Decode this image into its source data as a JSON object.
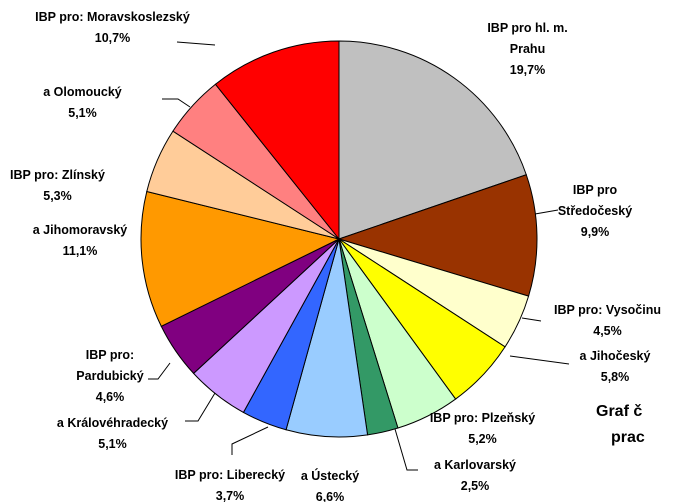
{
  "chart_data": {
    "type": "pie",
    "categories": [
      "IBP pro hl. m. Prahu",
      "IBP pro Středočeský",
      "IBP pro: Vysočinu",
      "a Jihočeský",
      "IBP pro: Plzeňský",
      "a Karlovarský",
      "a Ústecký",
      "IBP pro: Liberecký",
      "a Královéhradecký",
      "IBP pro: Pardubický",
      "a Jihomoravský",
      "IBP pro: Zlínský",
      "a Olomoucký",
      "IBP pro: Moravskoslezský"
    ],
    "values": [
      19.7,
      9.9,
      4.5,
      5.8,
      5.2,
      2.5,
      6.6,
      3.7,
      5.1,
      4.6,
      11.1,
      5.3,
      5.1,
      10.7
    ],
    "value_labels": [
      "19,7%",
      "9,9%",
      "4,5%",
      "5,8%",
      "5,2%",
      "2,5%",
      "6,6%",
      "3,7%",
      "5,1%",
      "4,6%",
      "11,1%",
      "5,3%",
      "5,1%",
      "10,7%"
    ],
    "colors": [
      "#c0c0c0",
      "#993300",
      "#ffffcc",
      "#ffff00",
      "#ccffcc",
      "#339966",
      "#99ccff",
      "#3366ff",
      "#cc99ff",
      "#800080",
      "#ff9900",
      "#ffcc99",
      "#ff8080",
      "#ff0000"
    ],
    "title_lines": [
      "Graf č",
      "prac"
    ]
  }
}
